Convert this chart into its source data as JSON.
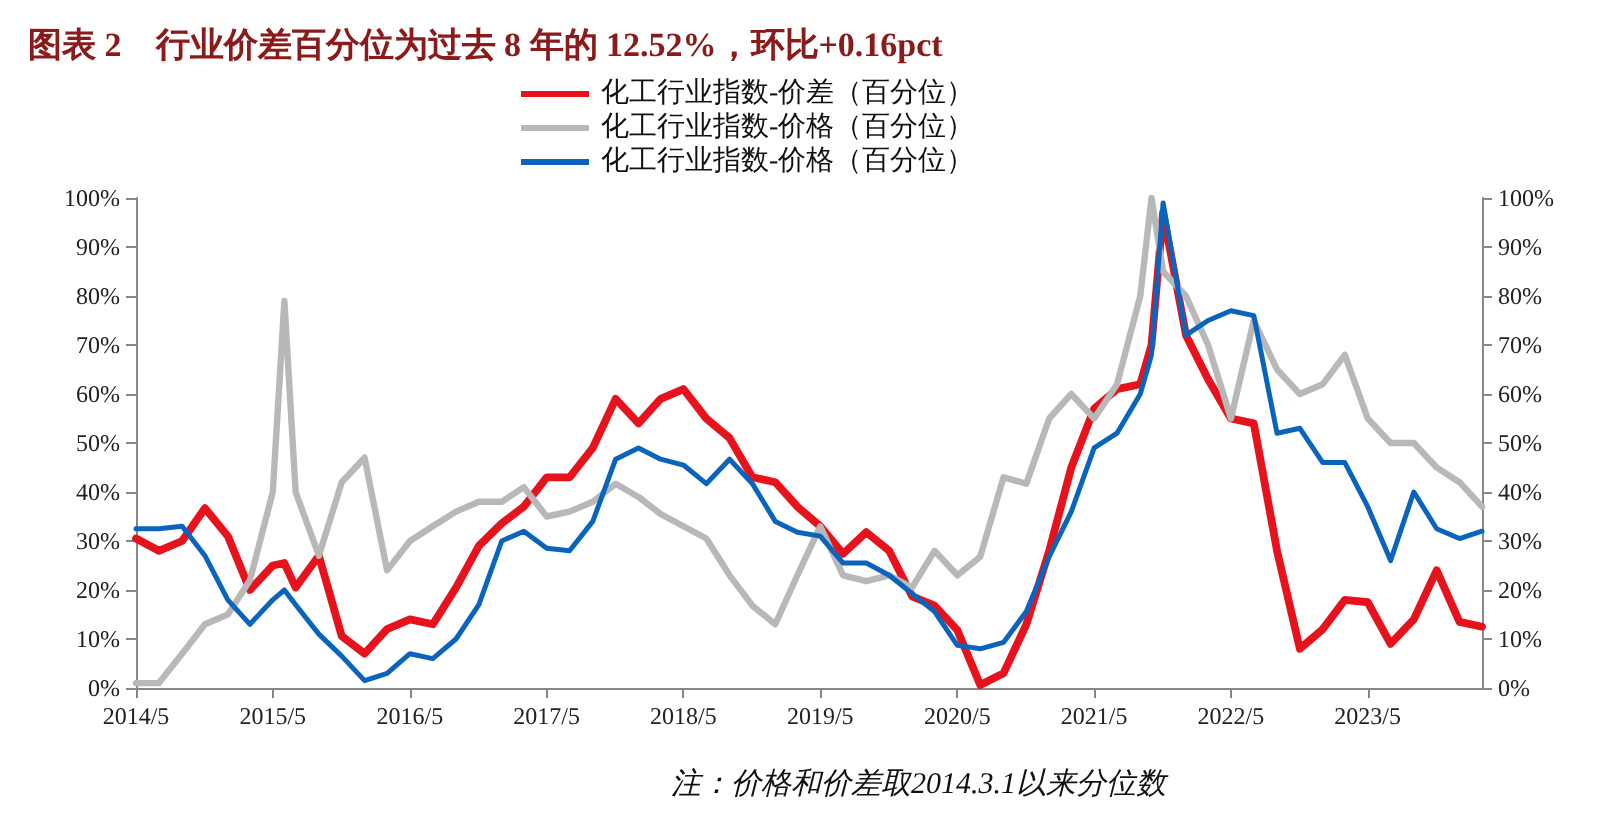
{
  "chart_data": {
    "type": "line",
    "title": "图表 2　行业价差百分位为过去 8 年的 12.52%，环比+0.16pct",
    "x": [
      "2014-05",
      "2014-07",
      "2014-09",
      "2014-11",
      "2015-01",
      "2015-03",
      "2015-05",
      "2015-06",
      "2015-07",
      "2015-09",
      "2015-11",
      "2016-01",
      "2016-03",
      "2016-05",
      "2016-07",
      "2016-09",
      "2016-11",
      "2017-01",
      "2017-03",
      "2017-05",
      "2017-07",
      "2017-09",
      "2017-11",
      "2018-01",
      "2018-03",
      "2018-05",
      "2018-07",
      "2018-09",
      "2018-11",
      "2019-01",
      "2019-03",
      "2019-05",
      "2019-07",
      "2019-09",
      "2019-11",
      "2020-01",
      "2020-03",
      "2020-05",
      "2020-07",
      "2020-09",
      "2020-11",
      "2021-01",
      "2021-03",
      "2021-05",
      "2021-07",
      "2021-09",
      "2021-10",
      "2021-11",
      "2022-01",
      "2022-03",
      "2022-05",
      "2022-07",
      "2022-09",
      "2022-11",
      "2023-01",
      "2023-03",
      "2023-05",
      "2023-07",
      "2023-09",
      "2023-11",
      "2024-01",
      "2024-03"
    ],
    "series": [
      {
        "name": "化工行业指数-价差（百分位）",
        "color": "#e8121c",
        "values": [
          30.5,
          28,
          30,
          36.7,
          31,
          20,
          25,
          25.5,
          20.5,
          27,
          10.6,
          7,
          12,
          14,
          13,
          20.5,
          29,
          33.6,
          37,
          43,
          43,
          49,
          59,
          54,
          59,
          61,
          55,
          51,
          43,
          42,
          37,
          33,
          27.4,
          31.8,
          28,
          18.7,
          16.8,
          11.8,
          0.6,
          3,
          13,
          28,
          45,
          57,
          61,
          62,
          70,
          97,
          72,
          63,
          55,
          54,
          28,
          8,
          12,
          18,
          17.5,
          9,
          14,
          24,
          13.5,
          12.5
        ]
      },
      {
        "name": "化工行业指数-价格（百分位）",
        "color": "#b8b8b8",
        "values": [
          1,
          1,
          7,
          13,
          15,
          22,
          40,
          79,
          40,
          27,
          42,
          47,
          24,
          30,
          33,
          36,
          38,
          38,
          41,
          35,
          36,
          38,
          41.7,
          39,
          35.5,
          33,
          30.5,
          23,
          16.8,
          13,
          23,
          33,
          23,
          21.8,
          23,
          20.5,
          28,
          23,
          26.8,
          43,
          41.7,
          55,
          60,
          55,
          62,
          80,
          100,
          85,
          80,
          70,
          55,
          75,
          65,
          60,
          62,
          68,
          55,
          50,
          50,
          45,
          42,
          37
        ]
      },
      {
        "name": "化工行业指数-价格（百分位）",
        "color": "#0a64be",
        "values": [
          32.5,
          32.5,
          33,
          27,
          18,
          13,
          18,
          20,
          17,
          11,
          6.5,
          1.5,
          3,
          7,
          6,
          10,
          17,
          30,
          32,
          28.5,
          28,
          34,
          46.7,
          49,
          46.7,
          45.5,
          41.7,
          46.7,
          41.7,
          34,
          31.8,
          31,
          25.5,
          25.5,
          23,
          19.3,
          15.6,
          8.7,
          8,
          9.3,
          15.6,
          26.8,
          36,
          49,
          52,
          60,
          68,
          99,
          72,
          75,
          77,
          76,
          52,
          53,
          46,
          46,
          37,
          26,
          40,
          32.5,
          30.5,
          32
        ]
      }
    ],
    "xlim": [
      "2014-05",
      "2024-03"
    ],
    "xticks": [
      {
        "value": "2014-05",
        "label": "2014/5"
      },
      {
        "value": "2015-05",
        "label": "2015/5"
      },
      {
        "value": "2016-05",
        "label": "2016/5"
      },
      {
        "value": "2017-05",
        "label": "2017/5"
      },
      {
        "value": "2018-05",
        "label": "2018/5"
      },
      {
        "value": "2019-05",
        "label": "2019/5"
      },
      {
        "value": "2020-05",
        "label": "2020/5"
      },
      {
        "value": "2021-05",
        "label": "2021/5"
      },
      {
        "value": "2022-05",
        "label": "2022/5"
      },
      {
        "value": "2023-05",
        "label": "2023/5"
      }
    ],
    "ylim": [
      0,
      100
    ],
    "yticks": [
      {
        "value": 0,
        "label": "0%"
      },
      {
        "value": 10,
        "label": "10%"
      },
      {
        "value": 20,
        "label": "20%"
      },
      {
        "value": 30,
        "label": "30%"
      },
      {
        "value": 40,
        "label": "40%"
      },
      {
        "value": 50,
        "label": "50%"
      },
      {
        "value": 60,
        "label": "60%"
      },
      {
        "value": 70,
        "label": "70%"
      },
      {
        "value": 80,
        "label": "80%"
      },
      {
        "value": 90,
        "label": "90%"
      },
      {
        "value": 100,
        "label": "100%"
      }
    ],
    "y2lim": [
      0,
      100
    ],
    "y2ticks": [
      {
        "value": 0,
        "label": "0%"
      },
      {
        "value": 10,
        "label": "10%"
      },
      {
        "value": 20,
        "label": "20%"
      },
      {
        "value": 30,
        "label": "30%"
      },
      {
        "value": 40,
        "label": "40%"
      },
      {
        "value": 50,
        "label": "50%"
      },
      {
        "value": 60,
        "label": "60%"
      },
      {
        "value": 70,
        "label": "70%"
      },
      {
        "value": 80,
        "label": "80%"
      },
      {
        "value": 90,
        "label": "90%"
      },
      {
        "value": 100,
        "label": "100%"
      }
    ],
    "legend": "top",
    "grid": false,
    "marker": "none",
    "line_style": "solid",
    "annotations": [
      "注：价格和价差取2014.3.1以来分位数"
    ]
  }
}
